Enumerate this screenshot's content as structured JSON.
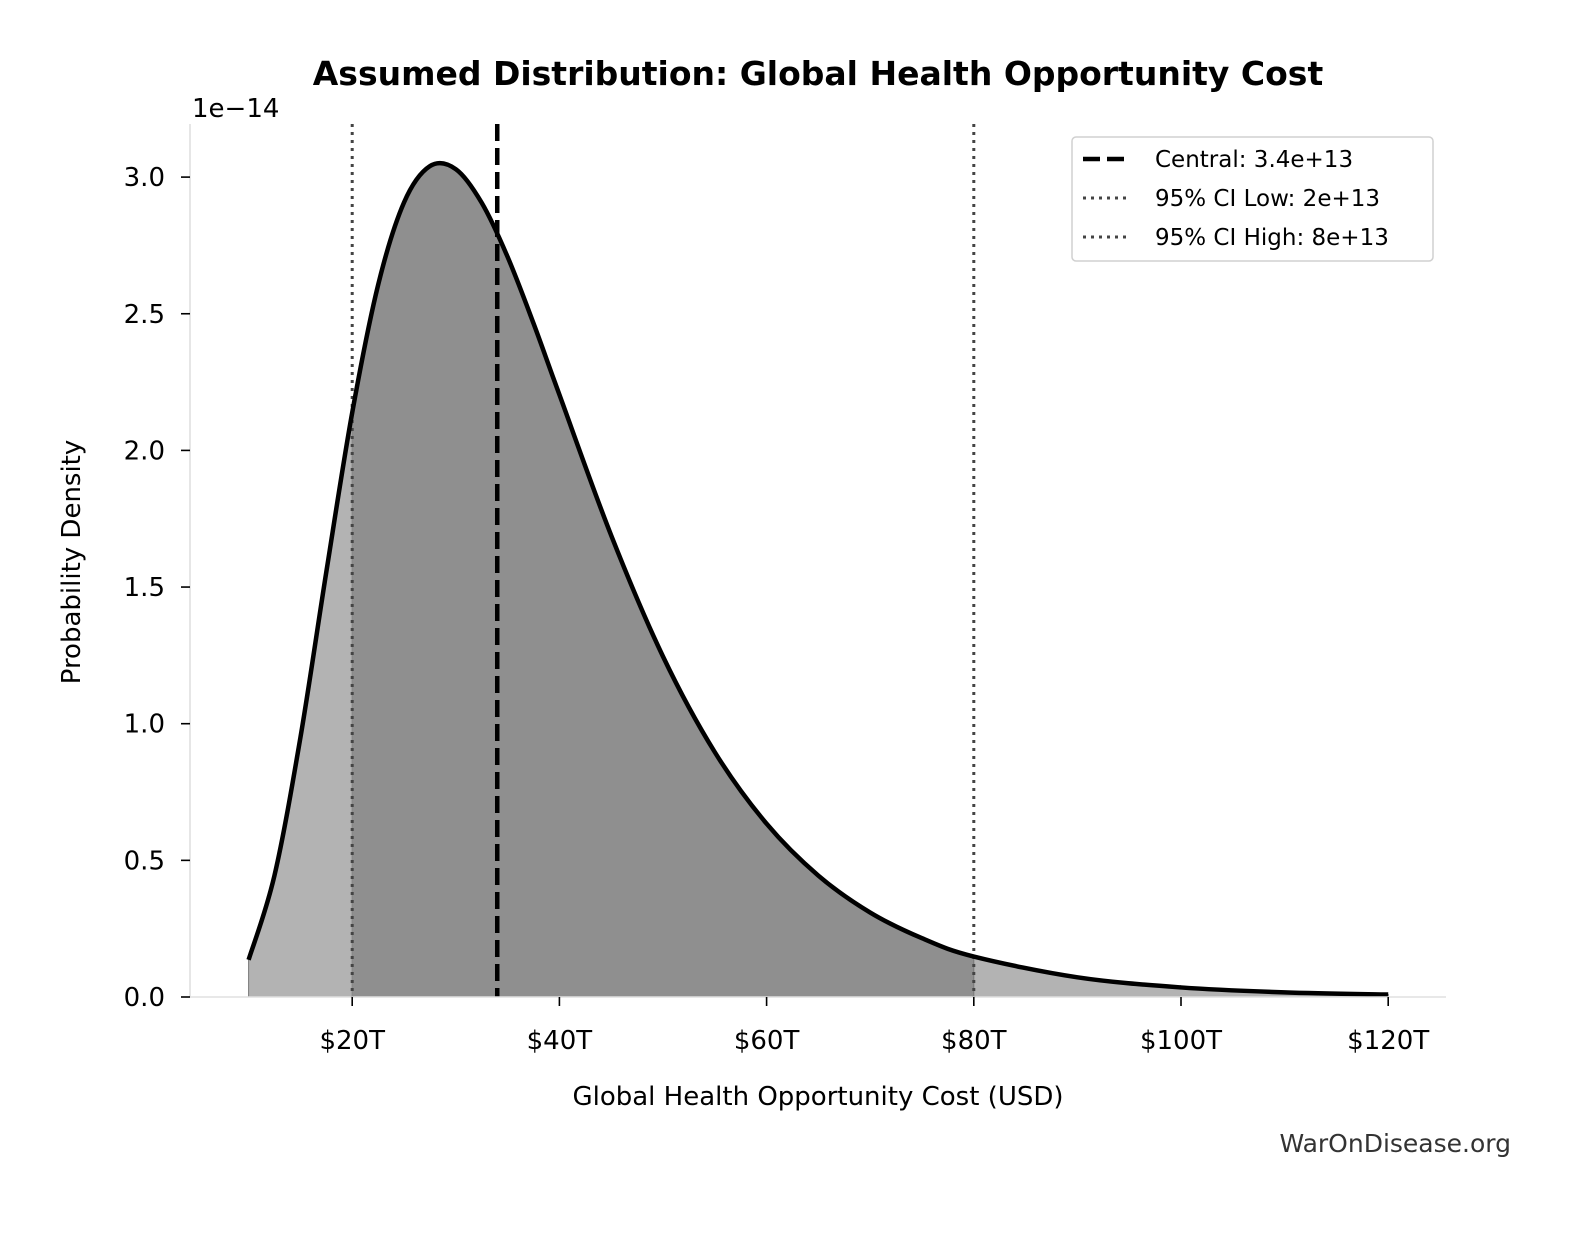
{
  "chart_data": {
    "type": "area",
    "title": "Assumed Distribution: Global Health Opportunity Cost",
    "xlabel": "Global Health Opportunity Cost (USD)",
    "ylabel": "Probability Density",
    "y_offset_label": "1e−14",
    "xlim": [
      4.5,
      125.5
    ],
    "ylim": [
      0,
      3.2
    ],
    "x_unit": "trillion USD",
    "y_unit": "1e-14",
    "x_ticks": [
      20,
      40,
      60,
      80,
      100,
      120
    ],
    "x_tick_labels": [
      "$20T",
      "$40T",
      "$60T",
      "$80T",
      "$100T",
      "$120T"
    ],
    "y_ticks": [
      0,
      0.5,
      1.0,
      1.5,
      2.0,
      2.5,
      3.0
    ],
    "y_tick_labels": [
      "0.0",
      "0.5",
      "1.0",
      "1.5",
      "2.0",
      "2.5",
      "3.0"
    ],
    "grid": false,
    "legend_placement": "top-right",
    "curve": {
      "x": [
        10,
        12.5,
        15,
        17.5,
        20,
        22.5,
        25,
        27.5,
        30,
        32.5,
        35,
        37.5,
        40,
        45,
        50,
        55,
        60,
        65,
        70,
        75,
        80,
        90,
        100,
        110,
        120
      ],
      "y": [
        0.136,
        0.445,
        0.949,
        1.555,
        2.138,
        2.605,
        2.907,
        3.04,
        3.029,
        2.906,
        2.708,
        2.465,
        2.204,
        1.689,
        1.246,
        0.896,
        0.634,
        0.444,
        0.309,
        0.215,
        0.148,
        0.072,
        0.035,
        0.017,
        0.009
      ]
    },
    "shaded_interval": [
      20,
      80
    ],
    "reference_lines": [
      {
        "label": "Central: 3.4e+13",
        "x": 34,
        "style": "dashed",
        "color": "#000000"
      },
      {
        "label": "95% CI Low: 2e+13",
        "x": 20,
        "style": "dotted",
        "color": "#444444"
      },
      {
        "label": "95% CI High: 8e+13",
        "x": 80,
        "style": "dotted",
        "color": "#444444"
      }
    ],
    "colors": {
      "curve": "#000000",
      "fill_inner": "#8f8f8f",
      "fill_outer": "#b3b3b3"
    }
  },
  "watermark": "WarOnDisease.org"
}
